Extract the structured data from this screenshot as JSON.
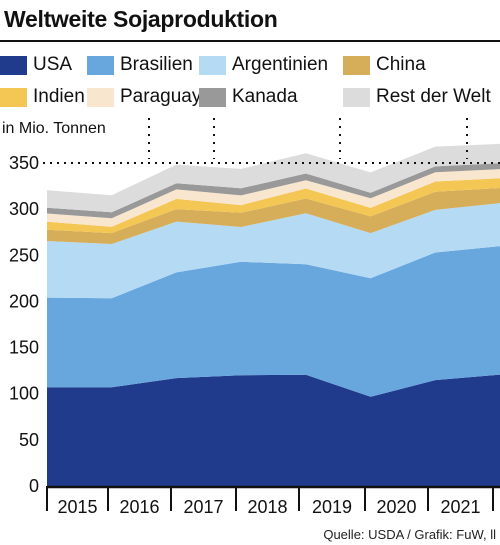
{
  "title": "Weltweite Sojaproduktion",
  "source": "Quelle: USDA / Grafik: FuW, ll",
  "legend": [
    {
      "name": "USA",
      "color": "#203a8c"
    },
    {
      "name": "Brasilien",
      "color": "#67a7dd"
    },
    {
      "name": "Argentinien",
      "color": "#b5daf4"
    },
    {
      "name": "China",
      "color": "#d6ad58"
    },
    {
      "name": "Indien",
      "color": "#f4c654"
    },
    {
      "name": "Paraguay",
      "color": "#f8e6cf"
    },
    {
      "name": "Kanada",
      "color": "#999999"
    },
    {
      "name": "Rest der Welt",
      "color": "#dcdcdc"
    }
  ],
  "chart_data": {
    "type": "area",
    "stacked": true,
    "title": "Weltweite Sojaproduktion",
    "ylabel": "in Mio. Tonnen",
    "xlabel": "",
    "ylim": [
      0,
      370
    ],
    "yticks": [
      0,
      50,
      100,
      150,
      200,
      250,
      300,
      350
    ],
    "x_tick_labels": [
      "2015",
      "2016",
      "2017",
      "2018",
      "2019",
      "2020",
      "2021"
    ],
    "x": [
      2014.5,
      2015.5,
      2016.5,
      2017.5,
      2018.5,
      2019.5,
      2020.5,
      2021.5
    ],
    "series": [
      {
        "name": "USA",
        "values": [
          106.9,
          106.9,
          116.9,
          120.1,
          120.5,
          96.7,
          114.7,
          120.7
        ]
      },
      {
        "name": "Brasilien",
        "values": [
          97.2,
          96.5,
          114.6,
          122.8,
          119.7,
          128.5,
          138.3,
          139.3
        ]
      },
      {
        "name": "Argentinien",
        "values": [
          61.4,
          58.8,
          55.0,
          37.8,
          55.3,
          48.8,
          46.2,
          46.5
        ]
      },
      {
        "name": "China",
        "values": [
          12.2,
          11.8,
          13.6,
          15.3,
          16.0,
          18.1,
          19.6,
          16.4
        ]
      },
      {
        "name": "Indien",
        "values": [
          8.7,
          6.9,
          11.0,
          8.4,
          10.9,
          9.3,
          11.2,
          10.5
        ]
      },
      {
        "name": "Paraguay",
        "values": [
          8.9,
          9.2,
          10.3,
          10.5,
          8.9,
          10.3,
          9.9,
          10.0
        ]
      },
      {
        "name": "Kanada",
        "values": [
          6.2,
          6.5,
          6.6,
          7.7,
          7.3,
          6.1,
          6.4,
          6.3
        ]
      },
      {
        "name": "Rest der Welt",
        "values": [
          19.0,
          18.5,
          20.3,
          21.0,
          22.0,
          22.0,
          21.5,
          21.0
        ]
      }
    ],
    "grid": "dotted-vertical-ticks",
    "legend_position": "top"
  }
}
